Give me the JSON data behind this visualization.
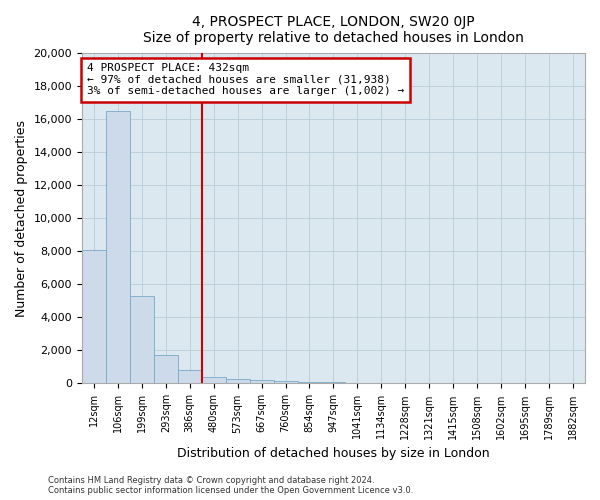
{
  "title": "4, PROSPECT PLACE, LONDON, SW20 0JP",
  "subtitle": "Size of property relative to detached houses in London",
  "xlabel": "Distribution of detached houses by size in London",
  "ylabel": "Number of detached properties",
  "bar_labels": [
    "12sqm",
    "106sqm",
    "199sqm",
    "293sqm",
    "386sqm",
    "480sqm",
    "573sqm",
    "667sqm",
    "760sqm",
    "854sqm",
    "947sqm",
    "1041sqm",
    "1134sqm",
    "1228sqm",
    "1321sqm",
    "1415sqm",
    "1508sqm",
    "1602sqm",
    "1695sqm",
    "1789sqm",
    "1882sqm"
  ],
  "bar_values": [
    8100,
    16500,
    5300,
    1750,
    800,
    380,
    270,
    200,
    130,
    100,
    60,
    0,
    0,
    0,
    0,
    0,
    0,
    0,
    0,
    0,
    0
  ],
  "bar_color": "#ccdaea",
  "bar_edgecolor": "#7aa8c8",
  "vline_color": "#cc0000",
  "annotation_title": "4 PROSPECT PLACE: 432sqm",
  "annotation_line1": "← 97% of detached houses are smaller (31,938)",
  "annotation_line2": "3% of semi-detached houses are larger (1,002) →",
  "annotation_box_facecolor": "#ffffff",
  "annotation_box_edgecolor": "#cc0000",
  "ylim": [
    0,
    20000
  ],
  "yticks": [
    0,
    2000,
    4000,
    6000,
    8000,
    10000,
    12000,
    14000,
    16000,
    18000,
    20000
  ],
  "footnote1": "Contains HM Land Registry data © Crown copyright and database right 2024.",
  "footnote2": "Contains public sector information licensed under the Open Government Licence v3.0.",
  "fig_bg_color": "#ffffff",
  "plot_bg_color": "#dce8f0",
  "grid_color": "#b8ccd8",
  "spine_color": "#aaaaaa"
}
